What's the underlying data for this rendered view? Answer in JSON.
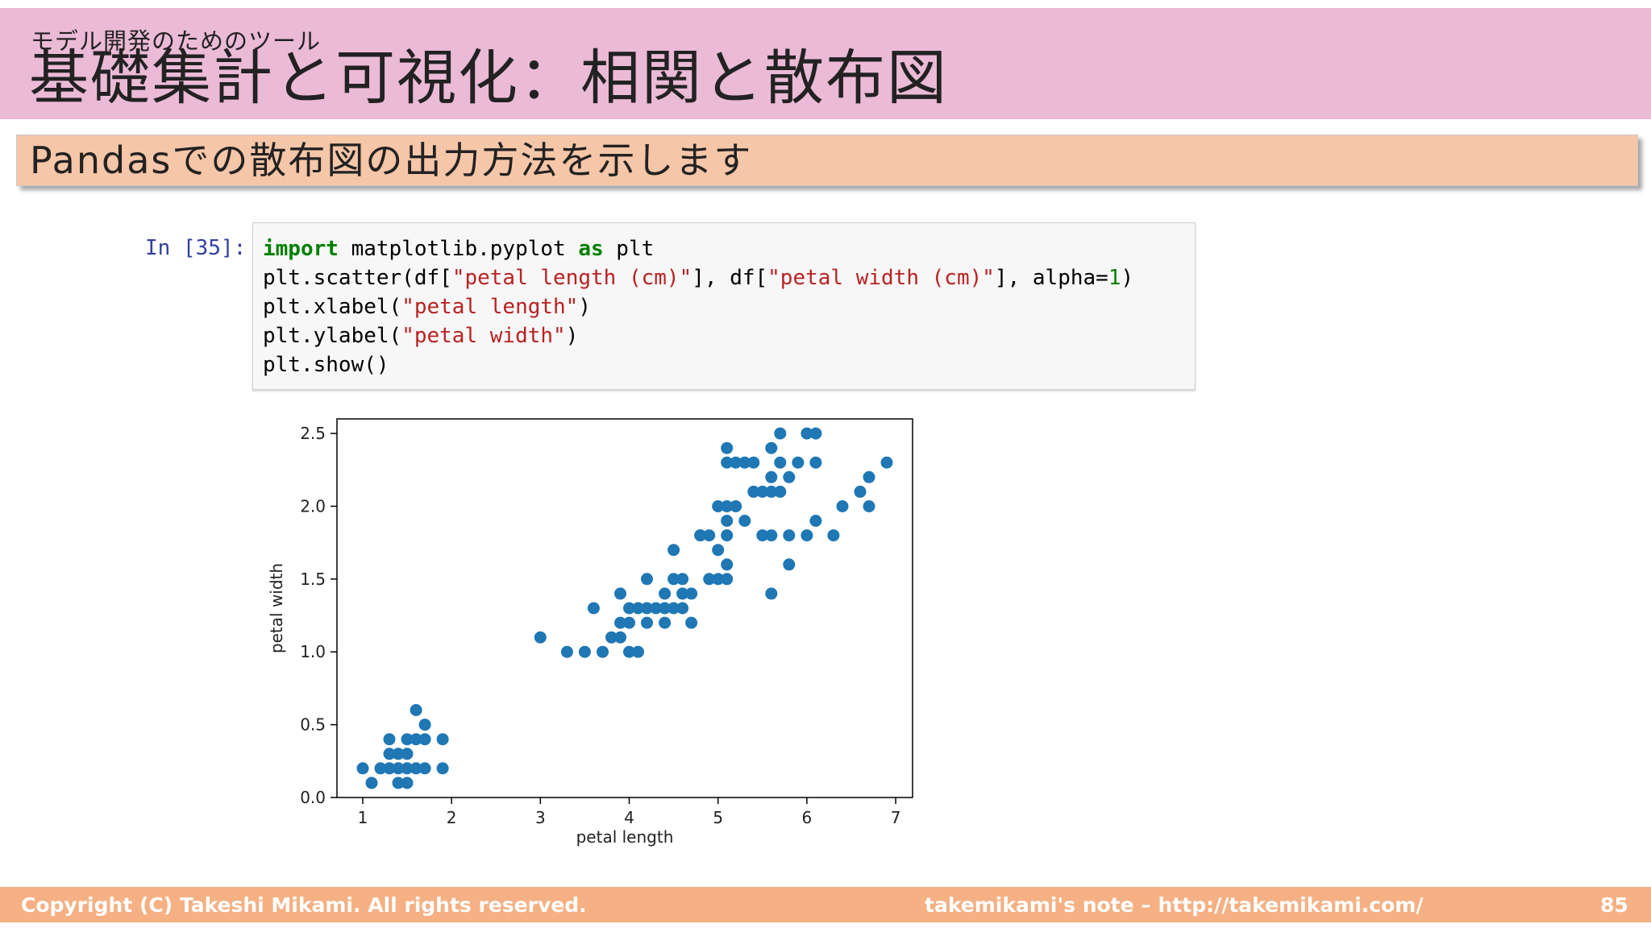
{
  "header": {
    "subtitle": "モデル開発のためのツール",
    "title": "基礎集計と可視化：相関と散布図"
  },
  "banner": {
    "text": "Pandasでの散布図の出力方法を示します"
  },
  "notebook": {
    "prompt": "In [35]:",
    "code": {
      "line1_kw": "import",
      "line1_rest": " matplotlib.pyplot ",
      "line1_kw2": "as",
      "line1_end": " plt",
      "line2_a": "plt.scatter(df[",
      "line2_s1": "\"petal length (cm)\"",
      "line2_b": "], df[",
      "line2_s2": "\"petal width (cm)\"",
      "line2_c": "], alpha=",
      "line2_n": "1",
      "line2_d": ")",
      "line3_a": "plt.xlabel(",
      "line3_s": "\"petal length\"",
      "line3_b": ")",
      "line4_a": "plt.ylabel(",
      "line4_s": "\"petal width\"",
      "line4_b": ")",
      "line5": "plt.show()"
    }
  },
  "chart_data": {
    "type": "scatter",
    "xlabel": "petal length",
    "ylabel": "petal width",
    "xlim": [
      0.71,
      7.19
    ],
    "ylim": [
      0.0,
      2.6
    ],
    "xticks": [
      "1",
      "2",
      "3",
      "4",
      "5",
      "6",
      "7"
    ],
    "yticks": [
      "0.0",
      "0.5",
      "1.0",
      "1.5",
      "2.0",
      "2.5"
    ],
    "marker_color": "#1f77b4",
    "points": [
      [
        1.0,
        0.2
      ],
      [
        1.1,
        0.1
      ],
      [
        1.2,
        0.2
      ],
      [
        1.3,
        0.2
      ],
      [
        1.3,
        0.3
      ],
      [
        1.3,
        0.4
      ],
      [
        1.4,
        0.1
      ],
      [
        1.4,
        0.2
      ],
      [
        1.4,
        0.3
      ],
      [
        1.5,
        0.1
      ],
      [
        1.5,
        0.2
      ],
      [
        1.5,
        0.3
      ],
      [
        1.5,
        0.4
      ],
      [
        1.6,
        0.2
      ],
      [
        1.6,
        0.4
      ],
      [
        1.6,
        0.6
      ],
      [
        1.7,
        0.2
      ],
      [
        1.7,
        0.4
      ],
      [
        1.7,
        0.5
      ],
      [
        1.9,
        0.2
      ],
      [
        1.9,
        0.4
      ],
      [
        3.0,
        1.1
      ],
      [
        3.3,
        1.0
      ],
      [
        3.5,
        1.0
      ],
      [
        3.6,
        1.3
      ],
      [
        3.7,
        1.0
      ],
      [
        3.8,
        1.1
      ],
      [
        3.9,
        1.1
      ],
      [
        3.9,
        1.2
      ],
      [
        3.9,
        1.4
      ],
      [
        4.0,
        1.0
      ],
      [
        4.0,
        1.2
      ],
      [
        4.0,
        1.3
      ],
      [
        4.1,
        1.0
      ],
      [
        4.1,
        1.3
      ],
      [
        4.2,
        1.2
      ],
      [
        4.2,
        1.3
      ],
      [
        4.2,
        1.5
      ],
      [
        4.3,
        1.3
      ],
      [
        4.4,
        1.2
      ],
      [
        4.4,
        1.3
      ],
      [
        4.4,
        1.4
      ],
      [
        4.5,
        1.3
      ],
      [
        4.5,
        1.5
      ],
      [
        4.6,
        1.3
      ],
      [
        4.6,
        1.4
      ],
      [
        4.6,
        1.5
      ],
      [
        4.7,
        1.2
      ],
      [
        4.7,
        1.4
      ],
      [
        4.8,
        1.8
      ],
      [
        4.9,
        1.5
      ],
      [
        5.0,
        1.7
      ],
      [
        5.1,
        1.6
      ],
      [
        4.5,
        1.7
      ],
      [
        4.8,
        1.8
      ],
      [
        4.9,
        1.8
      ],
      [
        5.0,
        1.5
      ],
      [
        5.0,
        2.0
      ],
      [
        5.1,
        1.5
      ],
      [
        5.1,
        1.8
      ],
      [
        5.1,
        1.9
      ],
      [
        5.1,
        2.0
      ],
      [
        5.1,
        2.3
      ],
      [
        5.1,
        2.4
      ],
      [
        5.2,
        2.0
      ],
      [
        5.2,
        2.3
      ],
      [
        5.3,
        1.9
      ],
      [
        5.3,
        2.3
      ],
      [
        5.4,
        2.1
      ],
      [
        5.4,
        2.3
      ],
      [
        5.5,
        1.8
      ],
      [
        5.5,
        2.1
      ],
      [
        5.6,
        1.4
      ],
      [
        5.6,
        1.8
      ],
      [
        5.6,
        2.1
      ],
      [
        5.6,
        2.2
      ],
      [
        5.6,
        2.4
      ],
      [
        5.7,
        2.1
      ],
      [
        5.7,
        2.3
      ],
      [
        5.7,
        2.5
      ],
      [
        5.8,
        1.6
      ],
      [
        5.8,
        1.8
      ],
      [
        5.8,
        2.2
      ],
      [
        5.9,
        2.3
      ],
      [
        6.0,
        1.8
      ],
      [
        6.0,
        2.5
      ],
      [
        6.1,
        1.9
      ],
      [
        6.1,
        2.3
      ],
      [
        6.1,
        2.5
      ],
      [
        6.3,
        1.8
      ],
      [
        6.4,
        2.0
      ],
      [
        6.6,
        2.1
      ],
      [
        6.7,
        2.0
      ],
      [
        6.7,
        2.2
      ],
      [
        6.9,
        2.3
      ]
    ]
  },
  "footer": {
    "copyright": "Copyright (C) Takeshi Mikami. All rights reserved.",
    "site": "takemikami's note – http://takemikami.com/",
    "page": "85"
  }
}
